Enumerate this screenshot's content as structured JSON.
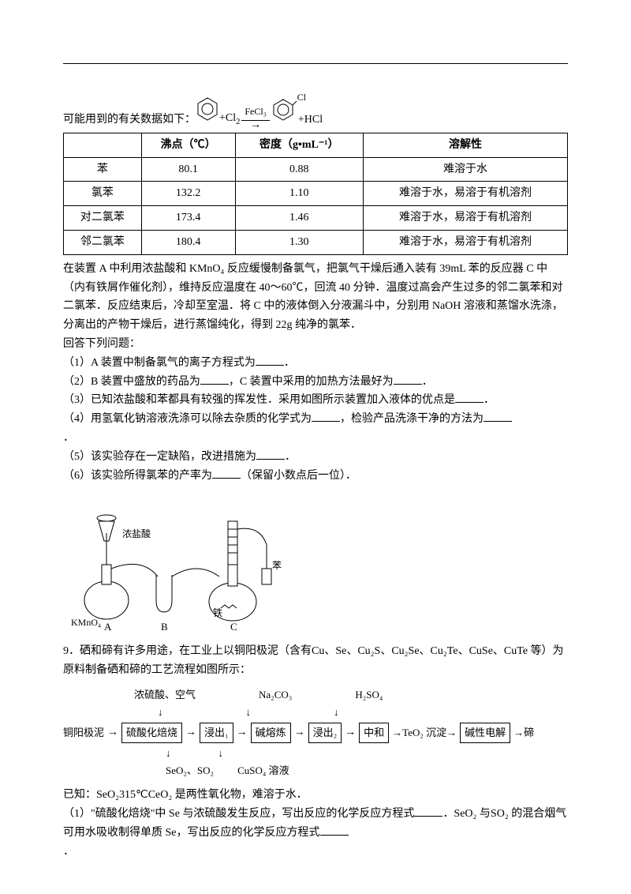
{
  "intro": "可能用到的有关数据如下：",
  "eq": {
    "plus": "+Cl",
    "sub2": "2",
    "cat": "FeCl₃",
    "plus2": "+HCl",
    "cl_label": "Cl"
  },
  "table": {
    "headers": [
      "",
      "沸点（℃）",
      "密度（g•mL⁻¹）",
      "溶解性"
    ],
    "rows": [
      [
        "苯",
        "80.1",
        "0.88",
        "难溶于水"
      ],
      [
        "氯苯",
        "132.2",
        "1.10",
        "难溶于水，易溶于有机溶剂"
      ],
      [
        "对二氯苯",
        "173.4",
        "1.46",
        "难溶于水，易溶于有机溶剂"
      ],
      [
        "邻二氯苯",
        "180.4",
        "1.30",
        "难溶于水，易溶于有机溶剂"
      ]
    ]
  },
  "body": [
    "在装置 A 中利用浓盐酸和 KMnO₄ 反应缓慢制备氯气，把氯气干燥后通入装有 39mL 苯的反应器 C 中（内有铁屑作催化剂），维持反应温度在 40～60℃，回流 40 分钟．温度过高会产生过多的邻二氯苯和对二氯苯．反应结束后，冷却至室温．将 C 中的液体倒入分液漏斗中，分别用 NaOH 溶液和蒸馏水洗涤，分离出的产物干燥后，进行蒸馏纯化，得到 22g 纯净的氯苯．",
    "回答下列问题："
  ],
  "questions": {
    "q1a": "（1）A 装置中制备氯气的离子方程式为",
    "q1b": "．",
    "q2a": "（2）B 装置中盛放的药品为",
    "q2b": "，C 装置中采用的加热方法最好为",
    "q2c": "．",
    "q3a": "（3）已知浓盐酸和苯都具有较强的挥发性．采用如图所示装置加入液体的优点是",
    "q3b": "．",
    "q4a": "（4）用氢氧化钠溶液洗涤可以除去杂质的化学式为",
    "q4b": "，检验产品洗涤干净的方法为",
    "q4c": "．",
    "q5a": "（5）该实验存在一定缺陷，改进措施为",
    "q5b": "．",
    "q6a": "（6）该实验所得氯苯的产率为",
    "q6b": "（保留小数点后一位）．"
  },
  "apparatus_labels": {
    "hcl": "浓盐酸",
    "kmno4": "KMnO₄",
    "benzene": "苯",
    "fe": "铁",
    "A": "A",
    "B": "B",
    "C": "C"
  },
  "p9": {
    "lead": "9．硒和碲有许多用途，在工业上以铜阳极泥（含有Cu、Se、Cu₂S、Cu₂Se、Cu₂Te、CuSe、CuTe 等）为原料制备硒和碲的工艺流程如图所示："
  },
  "flow": {
    "top_labels": [
      "浓硫酸、空气",
      "Na₂CO₃",
      "H₂SO₄"
    ],
    "start": "铜阳极泥",
    "boxes": [
      "硫酸化焙烧",
      "浸出₁",
      "碱熔炼",
      "浸出₂",
      "中和",
      "碱性电解"
    ],
    "mid": "→TeO₂ 沉淀→",
    "end": "→碲",
    "down_labels": [
      "SeO₂、SO₂",
      "CuSO₄ 溶液"
    ]
  },
  "known": "已知：SeO₂315℃CeO₂ 是两性氧化物，难溶于水．",
  "sub1a": "（1）\"硫酸化焙烧\"中 Se 与浓硫酸发生反应，写出反应的化学反应方程式",
  "sub1b": "．SeO₂ 与SO₂ 的混合烟气可用水吸收制得单质 Se，写出反应的化学反应方程式",
  "sub1c": "．"
}
